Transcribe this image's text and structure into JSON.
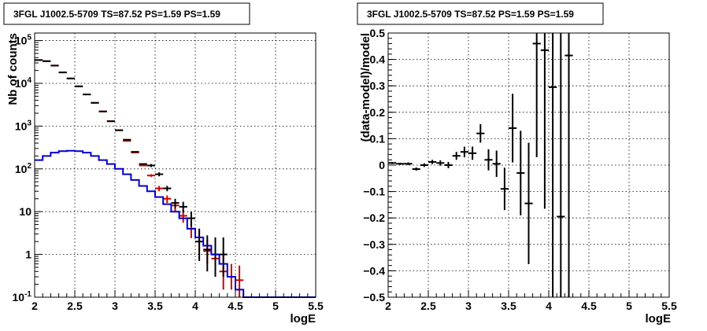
{
  "chart_data": [
    {
      "type": "line",
      "title": "3FGL J1002.5-5709 TS=87.52 PS=1.59 PS=1.59",
      "xlabel": "logE",
      "ylabel": "Nb of counts",
      "xlim": [
        2,
        5.5
      ],
      "ylim": [
        0.1,
        150000
      ],
      "yscale": "log",
      "grid": true,
      "x_ticks": [
        "2",
        "2.5",
        "3",
        "3.5",
        "4",
        "4.5",
        "5",
        "5.5"
      ],
      "y_ticks": [
        "10^-1",
        "1",
        "10",
        "10^2",
        "10^3",
        "10^4",
        "10^5"
      ],
      "series": [
        {
          "color": "#cc0000",
          "style": "points-with-errors",
          "x": [
            2.05,
            2.15,
            2.25,
            2.35,
            2.45,
            2.55,
            2.65,
            2.75,
            2.85,
            2.95,
            3.05,
            3.15,
            3.25,
            3.35,
            3.45,
            3.55,
            3.65,
            3.75,
            3.85,
            3.95,
            4.05,
            4.15,
            4.25,
            4.35,
            4.45,
            4.55
          ],
          "y": [
            35000,
            33000,
            26000,
            18000,
            13000,
            8500,
            5500,
            3500,
            2200,
            1300,
            800,
            450,
            240,
            120,
            70,
            35,
            20,
            14,
            8,
            4,
            2.5,
            1.2,
            0.8,
            0.4,
            0.3,
            0.25
          ],
          "y_err_low": [
            0,
            0,
            0,
            0,
            0,
            0,
            0,
            0,
            0,
            0,
            0,
            0,
            0,
            0,
            5,
            5,
            4,
            4,
            2.5,
            1.6,
            1.3,
            0.6,
            0.4,
            0.25,
            0.15,
            0.15
          ],
          "y_err_high": [
            0,
            0,
            0,
            0,
            0,
            0,
            0,
            0,
            0,
            0,
            0,
            0,
            0,
            0,
            5,
            5,
            4,
            4,
            3,
            2,
            1.5,
            1,
            1,
            0.8,
            0.3,
            0.3
          ]
        },
        {
          "color": "#000000",
          "style": "points-with-errors",
          "x": [
            2.05,
            2.15,
            2.25,
            2.35,
            2.45,
            2.55,
            2.65,
            2.75,
            2.85,
            2.95,
            3.05,
            3.15,
            3.25,
            3.35,
            3.45,
            3.55,
            3.65,
            3.75,
            3.85,
            3.95,
            4.05,
            4.15,
            4.25,
            4.35
          ],
          "y": [
            35000,
            33000,
            26000,
            18000,
            13000,
            8500,
            5500,
            3500,
            2200,
            1300,
            800,
            480,
            250,
            130,
            120,
            75,
            35,
            16,
            13,
            7,
            2,
            1.3,
            1,
            1
          ],
          "y_err_low": [
            0,
            0,
            0,
            0,
            0,
            0,
            0,
            0,
            0,
            0,
            0,
            0,
            0,
            0,
            10,
            8,
            5,
            4,
            3.5,
            2.5,
            1.3,
            0.9,
            0.7,
            0.7
          ],
          "y_err_high": [
            0,
            0,
            0,
            0,
            0,
            0,
            0,
            0,
            0,
            0,
            0,
            0,
            0,
            0,
            10,
            8,
            5,
            4,
            4,
            3,
            2,
            1.5,
            1.5,
            1.5
          ]
        },
        {
          "color": "#0000cc",
          "style": "step",
          "x": [
            2.0,
            2.1,
            2.2,
            2.3,
            2.4,
            2.5,
            2.6,
            2.7,
            2.8,
            2.9,
            3.0,
            3.1,
            3.2,
            3.3,
            3.4,
            3.5,
            3.6,
            3.7,
            3.8,
            3.9,
            4.0,
            4.1,
            4.2,
            4.3,
            4.4,
            4.5,
            4.6,
            5.5
          ],
          "y": [
            160,
            200,
            240,
            260,
            265,
            260,
            240,
            200,
            160,
            130,
            100,
            75,
            55,
            40,
            30,
            22,
            15,
            10,
            7,
            4,
            2.5,
            1.6,
            1,
            0.6,
            0.3,
            0.15,
            0.1,
            0.1
          ]
        }
      ]
    },
    {
      "type": "scatter",
      "title": "3FGL J1002.5-5709 TS=87.52 PS=1.59 PS=1.59",
      "xlabel": "logE",
      "ylabel": "(data-model)/model",
      "xlim": [
        2,
        5.5
      ],
      "ylim": [
        -0.5,
        0.5
      ],
      "grid": true,
      "x_ticks": [
        "2",
        "2.5",
        "3",
        "3.5",
        "4",
        "4.5",
        "5",
        "5.5"
      ],
      "y_ticks": [
        "−0.5",
        "−0.4",
        "−0.3",
        "−0.2",
        "−0.1",
        "0",
        "0.1",
        "0.2",
        "0.3",
        "0.4",
        "0.5"
      ],
      "series": [
        {
          "color": "#000000",
          "style": "points-with-errors",
          "x": [
            2.05,
            2.15,
            2.25,
            2.35,
            2.45,
            2.55,
            2.65,
            2.75,
            2.85,
            2.95,
            3.05,
            3.15,
            3.25,
            3.35,
            3.45,
            3.55,
            3.65,
            3.75,
            3.85,
            3.95,
            4.05,
            4.15,
            4.25
          ],
          "y": [
            0.008,
            0.005,
            0.005,
            -0.015,
            0.0,
            0.012,
            0.008,
            0.0,
            0.035,
            0.05,
            0.045,
            0.12,
            0.02,
            0.005,
            -0.09,
            0.14,
            -0.03,
            -0.145,
            0.46,
            0.435,
            0.295,
            -0.195,
            0.415
          ],
          "y_err": [
            0.004,
            0.004,
            0.005,
            0.006,
            0.007,
            0.008,
            0.01,
            0.012,
            0.015,
            0.02,
            0.025,
            0.035,
            0.04,
            0.05,
            0.08,
            0.13,
            0.16,
            0.23,
            0.43,
            0.6,
            0.8,
            0.9,
            1.0
          ]
        }
      ]
    }
  ]
}
